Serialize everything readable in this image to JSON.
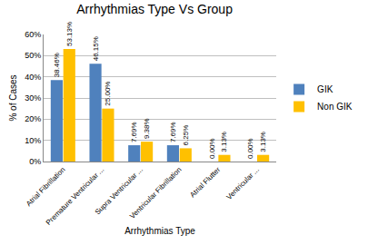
{
  "chart_data": {
    "type": "bar",
    "title": "Arrhythmias Type Vs Group",
    "x_label": "Arrhythmias Type",
    "y_label": "% of Cases",
    "categories": [
      "Atrial Fibrillation",
      "Premature Ventricular ...",
      "Supra Ventricular ...",
      "Ventricular Fibrillation",
      "Atrial Flutter",
      "Ventricular ..."
    ],
    "series": [
      {
        "name": "GIK",
        "color": "#4f81bd",
        "values": [
          38.46,
          46.15,
          7.69,
          7.69,
          0.0,
          0.0
        ],
        "value_labels": [
          "38.46%",
          "46.15%",
          "7.69%",
          "7.69%",
          "0.00%",
          "0.00%"
        ]
      },
      {
        "name": "Non GIK",
        "color": "#ffc000",
        "values": [
          53.13,
          25.0,
          9.38,
          6.25,
          3.13,
          3.13
        ],
        "value_labels": [
          "53.13%",
          "25.00%",
          "9.38%",
          "6.25%",
          "3.13%",
          "3.13%"
        ]
      }
    ],
    "ylim": [
      0,
      60
    ],
    "yticks": [
      {
        "value": 0,
        "label": "0%"
      },
      {
        "value": 10,
        "label": "10%"
      },
      {
        "value": 20,
        "label": "20%"
      },
      {
        "value": 30,
        "label": "30%"
      },
      {
        "value": 40,
        "label": "40%"
      },
      {
        "value": 50,
        "label": "50%"
      },
      {
        "value": 60,
        "label": "60%"
      }
    ],
    "grid": true,
    "legend": "right",
    "data_labels": true
  }
}
